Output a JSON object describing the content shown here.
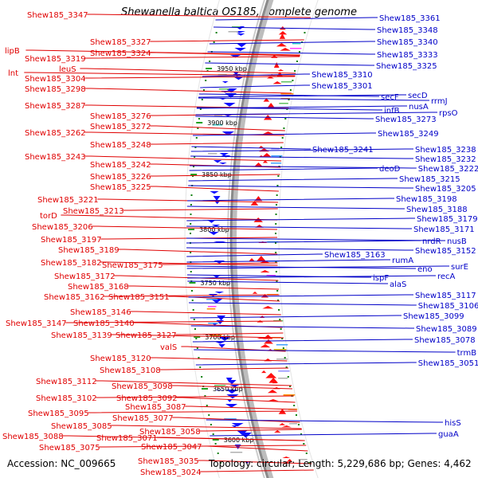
{
  "title": "Shewanella baltica OS185, complete genome",
  "footer": {
    "accession": "Accession: NC_009665",
    "topology": "Topology: circular; Length: 5,229,686 bp; Genes: 4,462"
  },
  "colors": {
    "forward_label": "#e00000",
    "reverse_label": "#0000c8",
    "backbone": "#8a8a8a"
  },
  "scale_ticks": [
    "3950 kbp",
    "3900 kbp",
    "3850 kbp",
    "3800 kbp",
    "3750 kbp",
    "3700 kbp",
    "3650 kbp",
    "3600 kbp"
  ],
  "left_labels": [
    "Shew185_3347",
    "Shew185_3327",
    "lipB",
    "Shew185_3324",
    "Shew185_3319",
    "leuS",
    "lnt",
    "Shew185_3304",
    "Shew185_3298",
    "Shew185_3287",
    "Shew185_3276",
    "Shew185_3272",
    "Shew185_3262",
    "Shew185_3248",
    "Shew185_3243",
    "Shew185_3242",
    "Shew185_3226",
    "Shew185_3225",
    "Shew185_3221",
    "Shew185_3213",
    "torD",
    "Shew185_3206",
    "Shew185_3197",
    "Shew185_3189",
    "Shew185_3182",
    "Shew185_3175",
    "Shew185_3172",
    "Shew185_3168",
    "Shew185_3162",
    "Shew185_3151",
    "Shew185_3146",
    "Shew185_3147",
    "Shew185_3140",
    "Shew185_3139",
    "Shew185_3127",
    "valS",
    "Shew185_3120",
    "Shew185_3108",
    "Shew185_3112",
    "Shew185_3098",
    "Shew185_3102",
    "Shew185_3092",
    "Shew185_3087",
    "Shew185_3095",
    "Shew185_3077",
    "Shew185_3085",
    "Shew185_3058",
    "Shew185_3088",
    "Shew185_3071",
    "Shew185_3075",
    "Shew185_3047",
    "Shew185_3035",
    "Shew185_3024"
  ],
  "right_labels": [
    "Shew185_3361",
    "Shew185_3348",
    "Shew185_3340",
    "Shew185_3333",
    "Shew185_3310",
    "Shew185_3325",
    "Shew185_3301",
    "secF",
    "secD",
    "rrmJ",
    "nusA",
    "infB",
    "rpsO",
    "Shew185_3273",
    "Shew185_3249",
    "Shew185_3241",
    "Shew185_3238",
    "Shew185_3232",
    "deoD",
    "Shew185_3222",
    "Shew185_3215",
    "Shew185_3205",
    "Shew185_3198",
    "Shew185_3188",
    "Shew185_3179",
    "Shew185_3171",
    "nrdR",
    "nusB",
    "Shew185_3163",
    "Shew185_3152",
    "rumA",
    "eno",
    "surE",
    "ispF",
    "recA",
    "alaS",
    "Shew185_3117",
    "Shew185_3106",
    "Shew185_3099",
    "Shew185_3089",
    "Shew185_3078",
    "trmB",
    "Shew185_3051",
    "hisS",
    "guaA"
  ]
}
